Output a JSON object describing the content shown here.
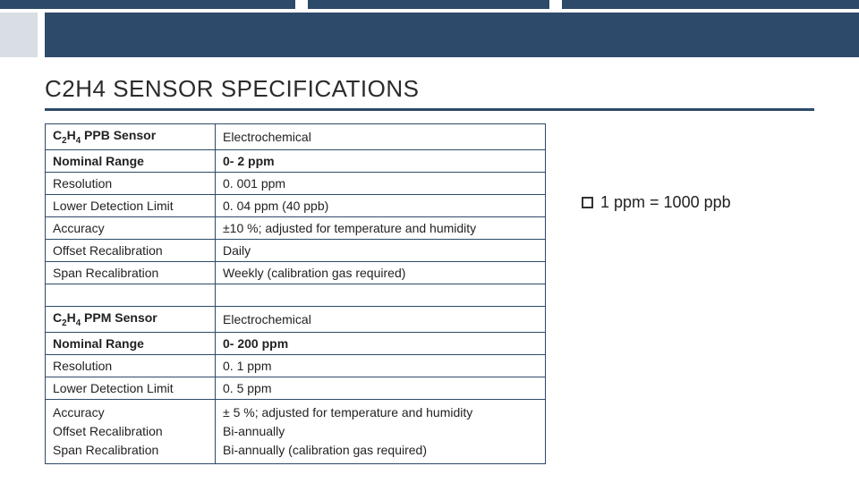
{
  "colors": {
    "accent": "#2d4a6a",
    "bg": "#ffffff",
    "text": "#222222"
  },
  "topbar": {
    "seg1_w": 330,
    "gap1_w": 14,
    "seg2_w": 270,
    "gap2_w": 14,
    "seg3_w": 332
  },
  "bigbar": {
    "b1_w": 42,
    "gap_w": 8,
    "b2_w": 910
  },
  "title": "C2H4 SENSOR SPECIFICATIONS",
  "note": "1 ppm = 1000 ppb",
  "table": {
    "rows": [
      {
        "label_html": "C<sub>2</sub>H<sub>4</sub> PPB Sensor",
        "value": "Electrochemical",
        "bold_label": true,
        "bold_value": false
      },
      {
        "label": "Nominal Range",
        "value": "0- 2 ppm",
        "bold_label": true,
        "bold_value": true
      },
      {
        "label": "Resolution",
        "value": "0. 001 ppm"
      },
      {
        "label": "Lower Detection Limit",
        "value": "0. 04 ppm (40 ppb)"
      },
      {
        "label": "Accuracy",
        "value": "±10 %; adjusted for temperature and humidity"
      },
      {
        "label": "Offset Recalibration",
        "value": "Daily"
      },
      {
        "label": "Span Recalibration",
        "value": "Weekly (calibration gas required)"
      },
      {
        "spacer": true
      },
      {
        "label_html": "C<sub>2</sub>H<sub>4</sub> PPM Sensor",
        "value": "Electrochemical",
        "bold_label": true,
        "bold_value": false
      },
      {
        "label": "Nominal Range",
        "value": "0- 200 ppm",
        "bold_label": true,
        "bold_value": true
      },
      {
        "label": "Resolution",
        "value": "0. 1 ppm"
      },
      {
        "label": "Lower Detection Limit",
        "value": "0. 5 ppm"
      },
      {
        "multi": true,
        "labels": [
          "Accuracy",
          "Offset Recalibration",
          "Span Recalibration"
        ],
        "values": [
          "± 5 %; adjusted for temperature and humidity",
          "Bi-annually",
          "Bi-annually (calibration gas required)"
        ]
      }
    ]
  }
}
